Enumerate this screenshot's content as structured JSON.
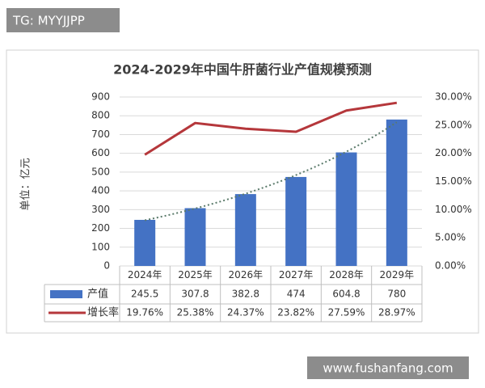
{
  "watermark": "TG: MYYJJPP",
  "site": "www.fushanfang.com",
  "chart_data": {
    "type": "bar",
    "title": "2024-2029年中国牛肝菌行业产值规模预测",
    "y_label": "单位：亿元",
    "categories": [
      "2024年",
      "2025年",
      "2026年",
      "2027年",
      "2028年",
      "2029年"
    ],
    "series": [
      {
        "name": "产值",
        "type": "bar",
        "color": "#4472c4",
        "values": [
          245.5,
          307.8,
          382.8,
          474,
          604.8,
          780
        ]
      },
      {
        "name": "增长率",
        "type": "line",
        "axis": "y2",
        "color": "#b5373b",
        "values": [
          19.76,
          25.38,
          24.37,
          23.82,
          27.59,
          28.97
        ],
        "value_labels": [
          "19.76%",
          "25.38%",
          "24.37%",
          "23.82%",
          "27.59%",
          "28.97%"
        ]
      }
    ],
    "ylim": [
      0,
      900
    ],
    "yticks": [
      0,
      100,
      200,
      300,
      400,
      500,
      600,
      700,
      800,
      900
    ],
    "y2lim": [
      0,
      30
    ],
    "y2ticks": [
      {
        "value": 0,
        "label": "0.00%"
      },
      {
        "value": 5,
        "label": "5.00%"
      },
      {
        "value": 10,
        "label": "10.00%"
      },
      {
        "value": 15,
        "label": "15.00%"
      },
      {
        "value": 20,
        "label": "20.00%"
      },
      {
        "value": 25,
        "label": "25.00%"
      },
      {
        "value": 30,
        "label": "30.00%"
      }
    ],
    "grid": true
  }
}
